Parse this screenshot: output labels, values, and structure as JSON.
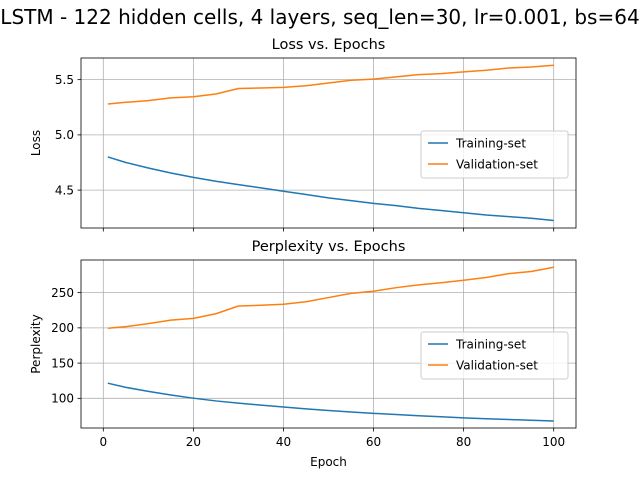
{
  "suptitle": "LSTM - 122 hidden cells, 4 layers, seq_len=30, lr=0.001, bs=64",
  "colors": {
    "training": "#1f77b4",
    "validation": "#ff7f0e"
  },
  "chart_data": [
    {
      "type": "line",
      "title": "Loss vs. Epochs",
      "xlabel": "",
      "ylabel": "Loss",
      "xlim": [
        -4.95,
        104.95
      ],
      "ylim": [
        4.157,
        5.696
      ],
      "xticks": [
        0,
        20,
        40,
        60,
        80,
        100
      ],
      "yticks": [
        4.5,
        5.0,
        5.5
      ],
      "ytick_labels": [
        "4.5",
        "5.0",
        "5.5"
      ],
      "show_xtick_labels": false,
      "grid": true,
      "legend": "center-right",
      "series": [
        {
          "name": "Training-set",
          "color": "#1f77b4",
          "x": [
            1,
            5,
            10,
            15,
            20,
            25,
            30,
            35,
            40,
            45,
            50,
            55,
            60,
            65,
            70,
            75,
            80,
            85,
            90,
            95,
            100
          ],
          "y": [
            4.8,
            4.75,
            4.7,
            4.655,
            4.615,
            4.58,
            4.55,
            4.52,
            4.49,
            4.46,
            4.43,
            4.405,
            4.38,
            4.36,
            4.335,
            4.315,
            4.295,
            4.275,
            4.26,
            4.245,
            4.225
          ]
        },
        {
          "name": "Validation-set",
          "color": "#ff7f0e",
          "x": [
            1,
            5,
            10,
            15,
            20,
            25,
            30,
            35,
            40,
            45,
            50,
            55,
            60,
            65,
            70,
            75,
            80,
            85,
            90,
            95,
            100
          ],
          "y": [
            5.28,
            5.295,
            5.31,
            5.335,
            5.345,
            5.37,
            5.42,
            5.425,
            5.43,
            5.445,
            5.47,
            5.495,
            5.505,
            5.525,
            5.545,
            5.555,
            5.57,
            5.585,
            5.605,
            5.615,
            5.63
          ]
        }
      ]
    },
    {
      "type": "line",
      "title": "Perplexity vs. Epochs",
      "xlabel": "Epoch",
      "ylabel": "Perplexity",
      "xlim": [
        -4.95,
        104.95
      ],
      "ylim": [
        57.9,
        296.3
      ],
      "xticks": [
        0,
        20,
        40,
        60,
        80,
        100
      ],
      "yticks": [
        100,
        150,
        200,
        250
      ],
      "ytick_labels": [
        "100",
        "150",
        "200",
        "250"
      ],
      "show_xtick_labels": true,
      "grid": true,
      "legend": "center-right",
      "series": [
        {
          "name": "Training-set",
          "color": "#1f77b4",
          "x": [
            1,
            5,
            10,
            15,
            20,
            25,
            30,
            35,
            40,
            45,
            50,
            55,
            60,
            65,
            70,
            75,
            80,
            85,
            90,
            95,
            100
          ],
          "y": [
            121.5,
            115.6,
            109.9,
            104.8,
            100.2,
            96.3,
            93.2,
            90.4,
            87.7,
            85.1,
            82.7,
            80.6,
            78.6,
            77.1,
            75.2,
            73.8,
            72.3,
            71.0,
            70.0,
            68.9,
            67.8
          ]
        },
        {
          "name": "Validation-set",
          "color": "#ff7f0e",
          "x": [
            1,
            5,
            10,
            15,
            20,
            25,
            30,
            35,
            40,
            45,
            50,
            55,
            60,
            65,
            70,
            75,
            80,
            85,
            90,
            95,
            100
          ],
          "y": [
            199.5,
            201.7,
            206.0,
            211.0,
            213.5,
            220.0,
            231.0,
            232.0,
            233.5,
            237.0,
            243.0,
            249.0,
            252.0,
            257.0,
            261.0,
            264.0,
            267.5,
            271.5,
            277.0,
            280.0,
            286.0
          ]
        }
      ]
    }
  ]
}
